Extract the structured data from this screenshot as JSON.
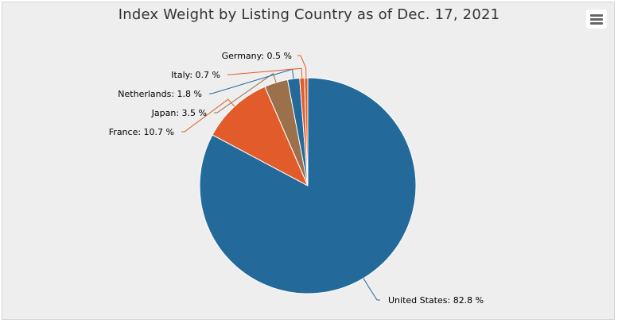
{
  "title": "Index Weight by Listing Country as of Dec. 17, 2021",
  "menu": {
    "icon": "hamburger-menu-icon"
  },
  "colors": {
    "background": "#eeeeee",
    "slices": [
      "#236a9b",
      "#e25c2b",
      "#9b704a",
      "#236a9b",
      "#e25c2b",
      "#e25c2b"
    ]
  },
  "chart_data": {
    "type": "pie",
    "title": "Index Weight by Listing Country as of Dec. 17, 2021",
    "value_suffix": " %",
    "slices": [
      {
        "name": "United States",
        "value": 82.8,
        "label": "United States: 82.8 %"
      },
      {
        "name": "France",
        "value": 10.7,
        "label": "France: 10.7 %"
      },
      {
        "name": "Japan",
        "value": 3.5,
        "label": "Japan: 3.5 %"
      },
      {
        "name": "Netherlands",
        "value": 1.8,
        "label": "Netherlands: 1.8 %"
      },
      {
        "name": "Italy",
        "value": 0.7,
        "label": "Italy: 0.7 %"
      },
      {
        "name": "Germany",
        "value": 0.5,
        "label": "Germany: 0.5 %"
      }
    ]
  }
}
